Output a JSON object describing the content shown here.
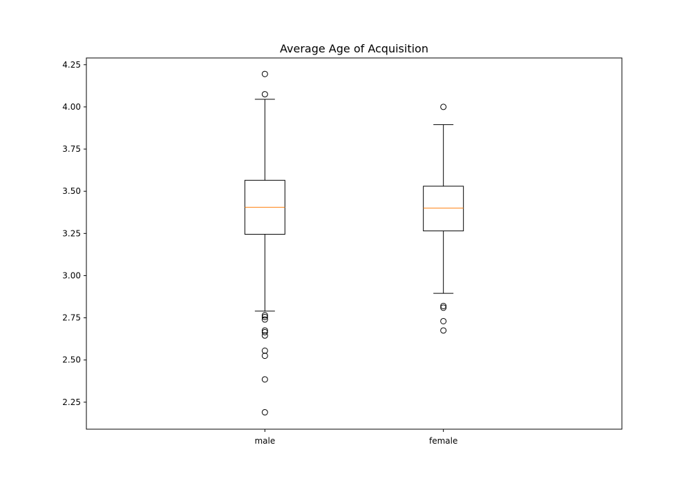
{
  "chart_data": {
    "type": "box",
    "title": "Average Age of Acquisition",
    "xlabel": "",
    "ylabel": "",
    "categories": [
      "male",
      "female"
    ],
    "ylim": [
      2.09,
      4.29
    ],
    "yticks": [
      2.25,
      2.5,
      2.75,
      3.0,
      3.25,
      3.5,
      3.75,
      4.0,
      4.25
    ],
    "ytick_labels": [
      "2.25",
      "2.50",
      "2.75",
      "3.00",
      "3.25",
      "3.50",
      "3.75",
      "4.00",
      "4.25"
    ],
    "grid": false,
    "boxes": [
      {
        "category": "male",
        "whisker_low": 2.79,
        "q1": 3.245,
        "median": 3.405,
        "q3": 3.565,
        "whisker_high": 4.045,
        "outliers": [
          4.195,
          4.075,
          2.765,
          2.755,
          2.74,
          2.675,
          2.665,
          2.645,
          2.555,
          2.525,
          2.385,
          2.19
        ]
      },
      {
        "category": "female",
        "whisker_low": 2.895,
        "q1": 3.265,
        "median": 3.4,
        "q3": 3.53,
        "whisker_high": 3.895,
        "outliers": [
          4.0,
          2.82,
          2.81,
          2.73,
          2.675
        ]
      }
    ],
    "colors": {
      "box": "#000000",
      "median": "#ff7f0e",
      "outlier": "#000000"
    }
  }
}
